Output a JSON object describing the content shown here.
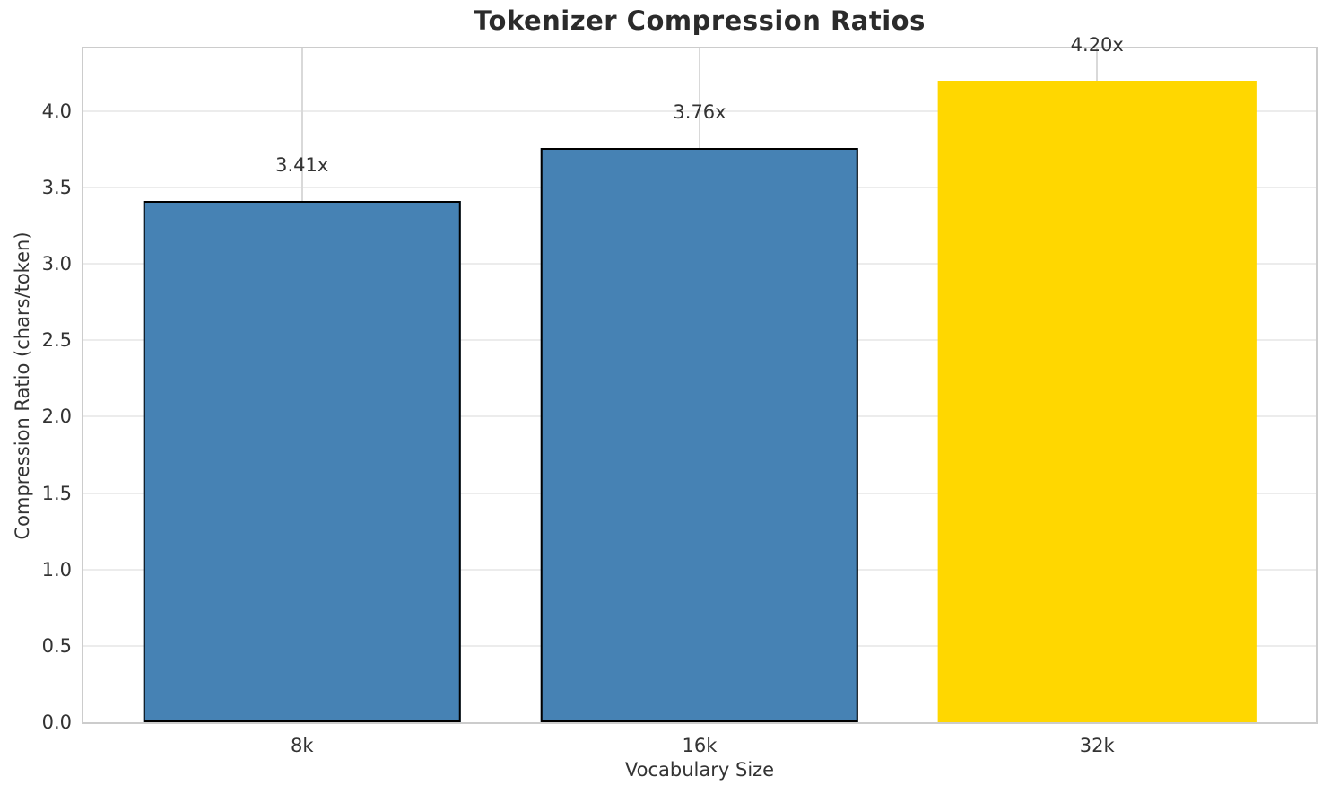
{
  "chart_data": {
    "type": "bar",
    "title": "Tokenizer Compression Ratios",
    "xlabel": "Vocabulary Size",
    "ylabel": "Compression Ratio (chars/token)",
    "categories": [
      "8k",
      "16k",
      "32k"
    ],
    "values": [
      3.41,
      3.76,
      4.2
    ],
    "value_labels": [
      "3.41x",
      "3.76x",
      "4.20x"
    ],
    "bar_fill_colors": [
      "#4682b4",
      "#4682b4",
      "#ffd700"
    ],
    "bar_edge_colors": [
      "#000000",
      "#000000",
      "#ffd700"
    ],
    "ylim": [
      0,
      4.41
    ],
    "yticks": [
      0.0,
      0.5,
      1.0,
      1.5,
      2.0,
      2.5,
      3.0,
      3.5,
      4.0
    ],
    "ytick_labels": [
      "0.0",
      "0.5",
      "1.0",
      "1.5",
      "2.0",
      "2.5",
      "3.0",
      "3.5",
      "4.0"
    ],
    "grid": true,
    "grid_horizontal_color": "#ececec",
    "grid_vertical_color": "#d9d9d9",
    "spine_color": "#cccccc",
    "text_color": "#333333",
    "title_color": "#2b2b2b",
    "legend_position": "none",
    "bar_width_fraction": 0.258,
    "bar_center_fractions": [
      0.1774,
      0.5,
      0.8226
    ]
  }
}
